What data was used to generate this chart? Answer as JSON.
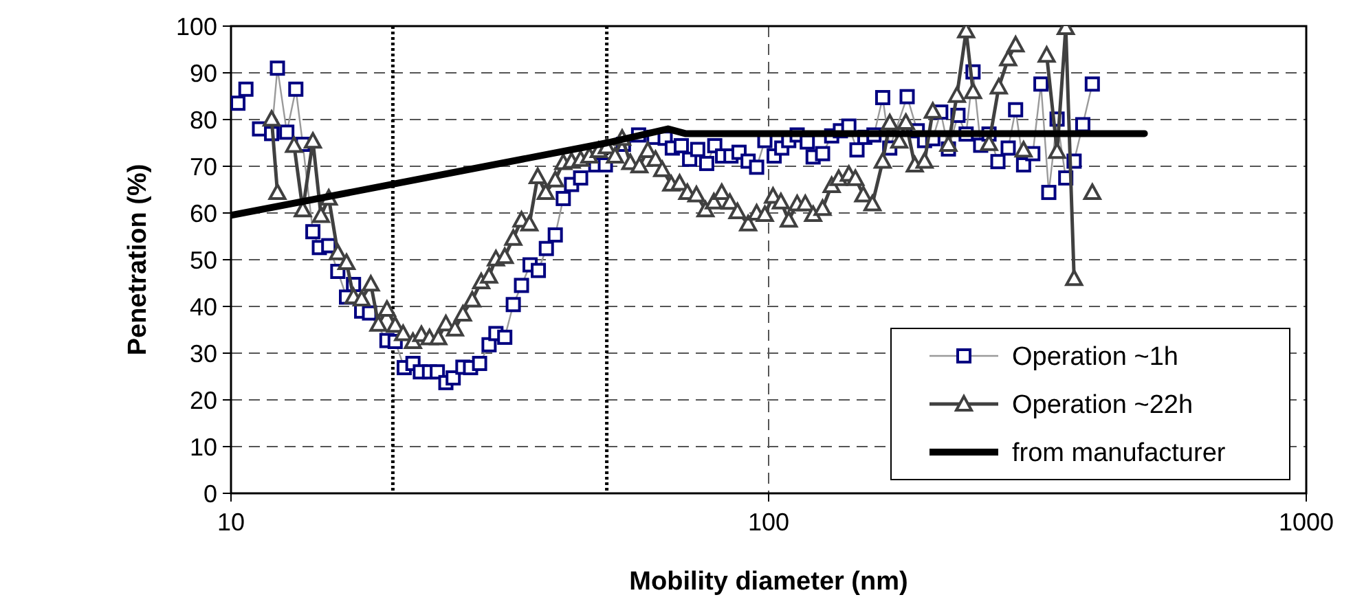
{
  "chart_data": {
    "type": "line",
    "xlabel": "Mobility diameter (nm)",
    "ylabel": "Penetration (%)",
    "log": "x",
    "xlim": [
      10,
      1000
    ],
    "xticks": [
      10,
      100,
      1000
    ],
    "ylim": [
      0,
      100
    ],
    "yticks": [
      0,
      10,
      20,
      30,
      40,
      50,
      60,
      70,
      80,
      90,
      100
    ],
    "grid": true,
    "legend": "bottom right",
    "ref_lines": [
      {
        "axis": "x",
        "value": 20,
        "color": "#000000",
        "line_style": "dotted"
      },
      {
        "axis": "x",
        "value": 50,
        "color": "#000000",
        "line_style": "dotted"
      }
    ],
    "series": [
      {
        "name": "Operation ~1h",
        "color": "#000080",
        "marker": "square",
        "x": [
          10.3,
          10.66,
          11.0,
          11.3,
          11.9,
          12.2,
          12.7,
          13.2,
          13.6,
          14.2,
          14.6,
          15.2,
          15.8,
          16.4,
          16.9,
          17.5,
          18.1,
          19.5,
          20.2,
          21.0,
          21.8,
          22.5,
          23.4,
          24.2,
          25.1,
          25.9,
          27.0,
          27.9,
          29.0,
          30.2,
          31.1,
          32.3,
          33.5,
          34.7,
          36.0,
          37.3,
          38.6,
          40.1,
          41.5,
          43.0,
          44.7,
          47.7,
          49.7,
          53.7,
          57.3,
          61.2,
          64.2,
          66.2,
          68.8,
          71.3,
          73.8,
          76.7,
          79.4,
          82.1,
          85.1,
          88.1,
          91.6,
          95.0,
          98.4,
          102.4,
          105.8,
          109,
          113,
          118,
          121,
          126,
          131,
          136,
          141,
          146,
          151,
          157,
          163,
          168,
          181,
          189,
          195,
          202,
          209,
          216,
          225,
          233,
          240,
          248,
          257,
          267,
          279,
          288,
          298,
          310,
          321,
          332,
          344,
          357,
          370,
          384,
          400
        ],
        "values": [
          83.5,
          86.5,
          null,
          78,
          77,
          91,
          77.3,
          86.5,
          74.7,
          56,
          52.6,
          53,
          47.5,
          42,
          44.7,
          39,
          38.6,
          32.7,
          32.5,
          26.9,
          27.8,
          26,
          26,
          26,
          23.7,
          24.7,
          27,
          26.9,
          27.8,
          31.8,
          34.2,
          33.4,
          40.4,
          44.5,
          48.9,
          47.7,
          52.4,
          55.3,
          63.1,
          66.1,
          67.5,
          70.3,
          70.3,
          74.7,
          76.7,
          76.2,
          76,
          73.9,
          74.4,
          71.5,
          73.6,
          70.6,
          74.4,
          72.2,
          72.2,
          73,
          71.1,
          69.8,
          75.5,
          72.2,
          73.9,
          75.5,
          76.7,
          75.2,
          72,
          72.7,
          76.5,
          77.6,
          78.6,
          73.5,
          76.2,
          76.7,
          84.7,
          73.9,
          84.9,
          77.6,
          75.5,
          75.9,
          81.6,
          73.7,
          80.9,
          76.9,
          90.2,
          74.5,
          76.9,
          71,
          73.9,
          82.1,
          70.3,
          72.7,
          87.6,
          64.4,
          80.1,
          67.5,
          71.1,
          78.9,
          87.6
        ]
      },
      {
        "name": "Operation ~22h",
        "color": "#404040",
        "marker": "triangle",
        "x": [
          11.9,
          12.2,
          12.7,
          13.1,
          13.6,
          14.2,
          14.7,
          15.2,
          15.8,
          16.4,
          16.9,
          17.5,
          18.2,
          18.8,
          19.5,
          20.2,
          20.9,
          21.8,
          22.6,
          23.4,
          24.3,
          25.1,
          26.1,
          27.0,
          28.1,
          29.2,
          30.2,
          31.1,
          32.3,
          33.5,
          34.7,
          35.9,
          37.2,
          38.5,
          40.1,
          41.5,
          43.0,
          44.7,
          46.4,
          48.3,
          50.0,
          51.8,
          53.4,
          55.3,
          57.5,
          59.6,
          61.6,
          63.4,
          65.9,
          68.3,
          70.6,
          73.4,
          76.3,
          79.1,
          81.8,
          84.7,
          87.5,
          91.6,
          95,
          98.4,
          101.9,
          105.4,
          109,
          113,
          117,
          121,
          126,
          131,
          135,
          141,
          145,
          150,
          156,
          163,
          168,
          175,
          180,
          187,
          195,
          202,
          208,
          216,
          224,
          233,
          240,
          248,
          257,
          268,
          279,
          288,
          293,
          298,
          312,
          329,
          344,
          357,
          370,
          385,
          400
        ],
        "values": [
          80.1,
          64.4,
          null,
          74.5,
          60.7,
          75.4,
          59.5,
          63.2,
          51.5,
          49.4,
          42.1,
          41.6,
          44.8,
          36.2,
          39.4,
          36,
          34.2,
          32.5,
          34,
          33.3,
          33.3,
          36.3,
          35.2,
          38.4,
          41.4,
          45.3,
          46.5,
          50.2,
          50.7,
          54.6,
          58.5,
          57.7,
          67.8,
          64.4,
          67.1,
          70.8,
          71.1,
          71.5,
          72.2,
          73.4,
          74.2,
          72.2,
          76,
          70.8,
          70.1,
          73.4,
          71.5,
          69.3,
          66.2,
          66.4,
          64.4,
          63.9,
          60.7,
          62.4,
          64.4,
          62.3,
          60.3,
          57.7,
          60,
          59.7,
          63.6,
          62.4,
          58.5,
          62,
          62,
          59.7,
          61,
          65.9,
          67.4,
          68.3,
          67.4,
          63.9,
          62,
          71.1,
          79.3,
          75.4,
          79.4,
          70.3,
          71.1,
          81.8,
          null,
          74.7,
          85.2,
          99,
          86,
          null,
          74.9,
          87,
          93,
          96,
          null,
          73.5,
          null,
          93.8,
          73.2,
          99.7,
          46,
          null,
          64.4
        ]
      },
      {
        "name": "from manufacturer",
        "color": "#000000",
        "marker": "none",
        "x": [
          10,
          50,
          65,
          70,
          500
        ],
        "values": [
          59.5,
          75,
          78,
          77,
          77
        ]
      }
    ]
  }
}
